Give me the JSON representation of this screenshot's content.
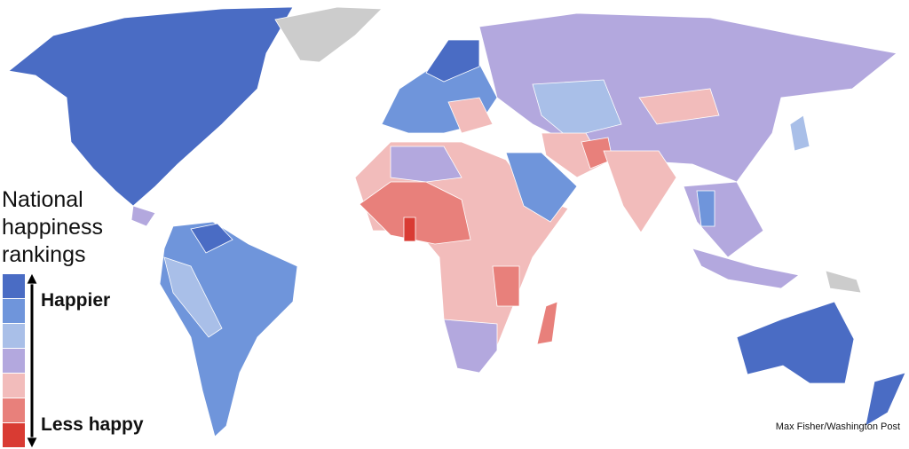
{
  "legend": {
    "title": "National happiness rankings",
    "top_label": "Happier",
    "bottom_label": "Less happy",
    "colors": [
      "#4a6cc4",
      "#6f95db",
      "#a9bfe8",
      "#b3a8de",
      "#f2bcbb",
      "#e8807b",
      "#d93b33"
    ]
  },
  "credit": "Max Fisher/Washington Post"
}
